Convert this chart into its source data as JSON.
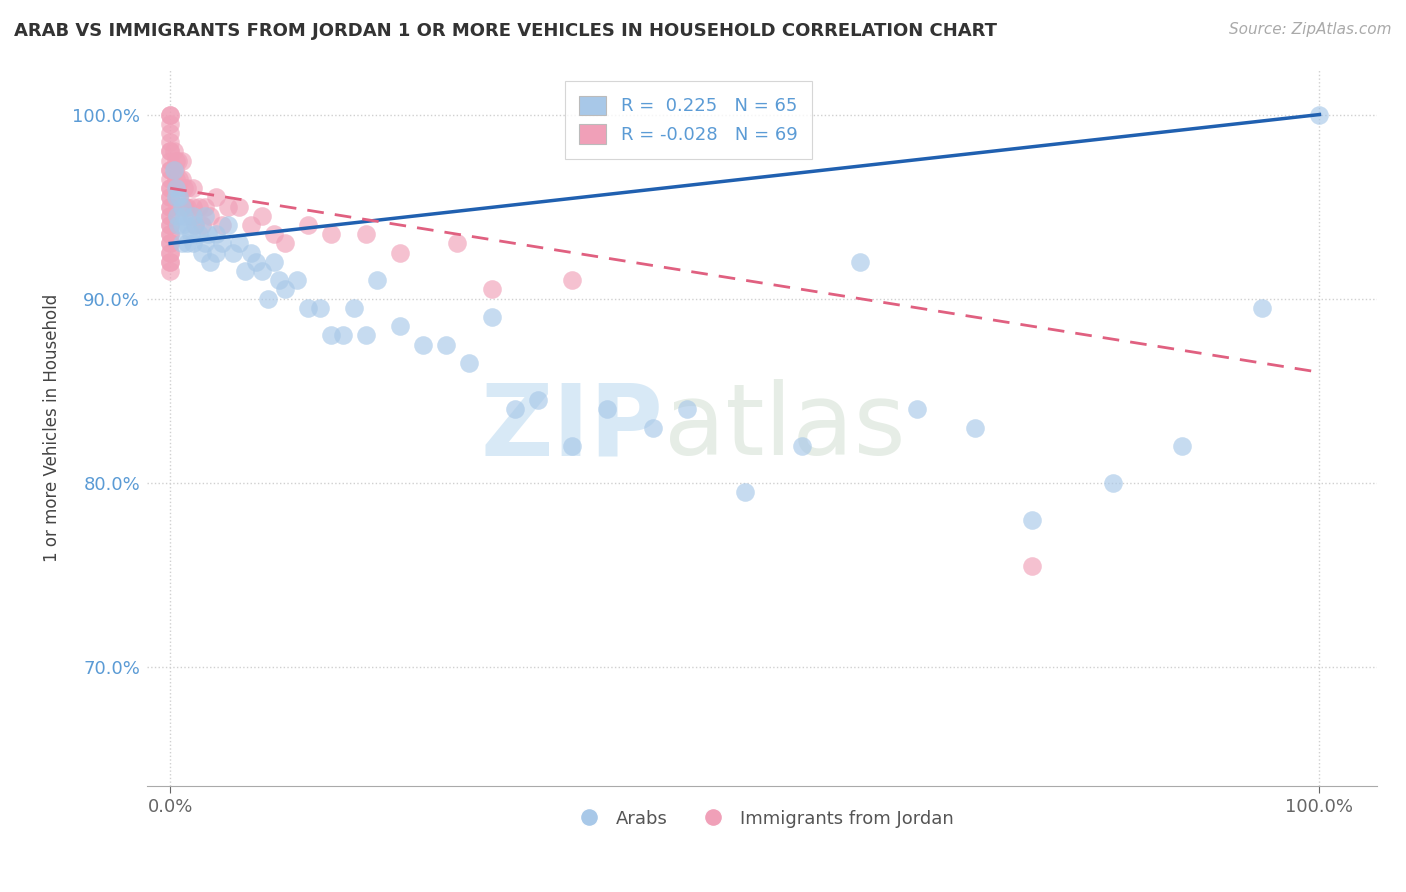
{
  "title": "ARAB VS IMMIGRANTS FROM JORDAN 1 OR MORE VEHICLES IN HOUSEHOLD CORRELATION CHART",
  "source": "Source: ZipAtlas.com",
  "ylabel": "1 or more Vehicles in Household",
  "xlabel": "",
  "xlim": [
    -0.02,
    1.05
  ],
  "ylim": [
    0.635,
    1.025
  ],
  "yticks": [
    0.7,
    0.8,
    0.9,
    1.0
  ],
  "ytick_labels": [
    "70.0%",
    "80.0%",
    "90.0%",
    "100.0%"
  ],
  "xtick_labels": [
    "0.0%",
    "100.0%"
  ],
  "xticks": [
    0.0,
    1.0
  ],
  "legend_r1": "R =  0.225",
  "legend_n1": "N = 65",
  "legend_r2": "R = -0.028",
  "legend_n2": "N = 69",
  "color_arab": "#a8c8e8",
  "color_jordan": "#f0a0b8",
  "trendline_arab_color": "#2060b0",
  "trendline_jordan_color": "#e06080",
  "background_color": "#ffffff",
  "grid_color": "#d0d0d0",
  "watermark_zip": "ZIP",
  "watermark_atlas": "atlas",
  "arab_x": [
    0.003,
    0.005,
    0.005,
    0.006,
    0.007,
    0.008,
    0.01,
    0.01,
    0.01,
    0.012,
    0.015,
    0.015,
    0.018,
    0.02,
    0.02,
    0.022,
    0.025,
    0.028,
    0.03,
    0.03,
    0.033,
    0.035,
    0.04,
    0.04,
    0.045,
    0.05,
    0.055,
    0.06,
    0.065,
    0.07,
    0.075,
    0.08,
    0.085,
    0.09,
    0.095,
    0.1,
    0.11,
    0.12,
    0.13,
    0.14,
    0.15,
    0.16,
    0.17,
    0.18,
    0.2,
    0.22,
    0.24,
    0.26,
    0.28,
    0.3,
    0.32,
    0.35,
    0.38,
    0.42,
    0.45,
    0.5,
    0.55,
    0.6,
    0.65,
    0.7,
    0.75,
    0.82,
    0.88,
    0.95,
    1.0
  ],
  "arab_y": [
    0.97,
    0.96,
    0.955,
    0.945,
    0.94,
    0.955,
    0.95,
    0.94,
    0.93,
    0.945,
    0.94,
    0.93,
    0.935,
    0.945,
    0.93,
    0.94,
    0.935,
    0.925,
    0.945,
    0.93,
    0.935,
    0.92,
    0.935,
    0.925,
    0.93,
    0.94,
    0.925,
    0.93,
    0.915,
    0.925,
    0.92,
    0.915,
    0.9,
    0.92,
    0.91,
    0.905,
    0.91,
    0.895,
    0.895,
    0.88,
    0.88,
    0.895,
    0.88,
    0.91,
    0.885,
    0.875,
    0.875,
    0.865,
    0.89,
    0.84,
    0.845,
    0.82,
    0.84,
    0.83,
    0.84,
    0.795,
    0.82,
    0.92,
    0.84,
    0.83,
    0.78,
    0.8,
    0.82,
    0.895,
    1.0
  ],
  "jordan_x": [
    0.0,
    0.0,
    0.0,
    0.0,
    0.0,
    0.0,
    0.0,
    0.0,
    0.0,
    0.0,
    0.0,
    0.0,
    0.0,
    0.0,
    0.0,
    0.0,
    0.0,
    0.0,
    0.0,
    0.0,
    0.0,
    0.0,
    0.0,
    0.0,
    0.0,
    0.0,
    0.0,
    0.0,
    0.0,
    0.0,
    0.003,
    0.004,
    0.005,
    0.005,
    0.006,
    0.007,
    0.008,
    0.008,
    0.01,
    0.01,
    0.01,
    0.012,
    0.013,
    0.015,
    0.015,
    0.018,
    0.02,
    0.02,
    0.022,
    0.025,
    0.028,
    0.03,
    0.035,
    0.04,
    0.045,
    0.05,
    0.06,
    0.07,
    0.08,
    0.09,
    0.1,
    0.12,
    0.14,
    0.17,
    0.2,
    0.25,
    0.28,
    0.35,
    0.75
  ],
  "jordan_y": [
    1.0,
    1.0,
    0.995,
    0.99,
    0.985,
    0.98,
    0.98,
    0.975,
    0.97,
    0.97,
    0.965,
    0.96,
    0.96,
    0.955,
    0.955,
    0.95,
    0.95,
    0.945,
    0.945,
    0.94,
    0.94,
    0.935,
    0.935,
    0.93,
    0.93,
    0.925,
    0.925,
    0.92,
    0.92,
    0.915,
    0.98,
    0.97,
    0.975,
    0.965,
    0.96,
    0.975,
    0.965,
    0.955,
    0.975,
    0.965,
    0.95,
    0.96,
    0.95,
    0.96,
    0.95,
    0.945,
    0.96,
    0.95,
    0.94,
    0.95,
    0.94,
    0.95,
    0.945,
    0.955,
    0.94,
    0.95,
    0.95,
    0.94,
    0.945,
    0.935,
    0.93,
    0.94,
    0.935,
    0.935,
    0.925,
    0.93,
    0.905,
    0.91,
    0.755
  ],
  "trendline_arab_x0": 0.0,
  "trendline_arab_y0": 0.93,
  "trendline_arab_x1": 1.0,
  "trendline_arab_y1": 1.0,
  "trendline_jordan_x0": 0.0,
  "trendline_jordan_y0": 0.96,
  "trendline_jordan_x1": 1.0,
  "trendline_jordan_y1": 0.86
}
